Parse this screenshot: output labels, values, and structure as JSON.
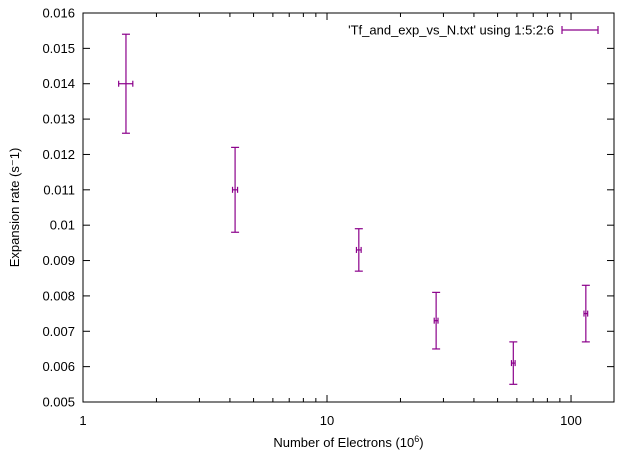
{
  "chart_data": {
    "type": "scatter",
    "x_scale": "log",
    "y_scale": "linear",
    "xlabel_main": "Number of Electrons (10",
    "xlabel_sup": "6",
    "xlabel_end": ")",
    "ylabel": "Expansion rate (s⁻1)",
    "xlim": [
      1,
      150
    ],
    "ylim": [
      0.005,
      0.016
    ],
    "x_ticks": [
      {
        "value": 1,
        "label": "1"
      },
      {
        "value": 10,
        "label": "10"
      },
      {
        "value": 100,
        "label": "100"
      }
    ],
    "y_ticks": [
      {
        "value": 0.005,
        "label": "0.005"
      },
      {
        "value": 0.006,
        "label": "0.006"
      },
      {
        "value": 0.007,
        "label": "0.007"
      },
      {
        "value": 0.008,
        "label": "0.008"
      },
      {
        "value": 0.009,
        "label": "0.009"
      },
      {
        "value": 0.01,
        "label": "0.01"
      },
      {
        "value": 0.011,
        "label": "0.011"
      },
      {
        "value": 0.012,
        "label": "0.012"
      },
      {
        "value": 0.013,
        "label": "0.013"
      },
      {
        "value": 0.014,
        "label": "0.014"
      },
      {
        "value": 0.015,
        "label": "0.015"
      },
      {
        "value": 0.016,
        "label": "0.016"
      }
    ],
    "grid": false,
    "legend_position": "top-right",
    "series": [
      {
        "name": "'Tf_and_exp_vs_N.txt' using 1:5:2:6",
        "color": "#8b008b",
        "points": [
          {
            "x": 1.5,
            "y": 0.014,
            "x_err": 0.1,
            "y_err": 0.0014
          },
          {
            "x": 4.2,
            "y": 0.011,
            "x_err": 0.1,
            "y_err": 0.0012
          },
          {
            "x": 13.5,
            "y": 0.0093,
            "x_err": 0.3,
            "y_err": 0.0006
          },
          {
            "x": 28.0,
            "y": 0.0073,
            "x_err": 0.5,
            "y_err": 0.0008
          },
          {
            "x": 58.0,
            "y": 0.0061,
            "x_err": 1.0,
            "y_err": 0.0006
          },
          {
            "x": 115.0,
            "y": 0.0075,
            "x_err": 2.0,
            "y_err": 0.0008
          }
        ]
      }
    ]
  }
}
